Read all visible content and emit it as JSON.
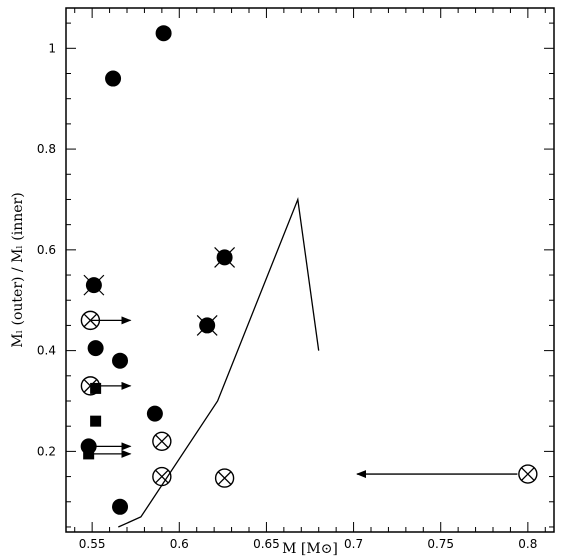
{
  "chart_data": {
    "type": "scatter",
    "xlabel": "M [M⊙]",
    "ylabel": "Mₗ (outer) / Mₗ (inner)",
    "xlim": [
      0.535,
      0.815
    ],
    "ylim": [
      0.04,
      1.08
    ],
    "x_ticks": [
      0.55,
      0.6,
      0.65,
      0.7,
      0.75,
      0.8
    ],
    "x_tick_labels": [
      "0.55",
      "0.6",
      "0.65",
      "0.7",
      "0.75",
      "0.8"
    ],
    "y_ticks": [
      0.2,
      0.4,
      0.6,
      0.8,
      1.0
    ],
    "y_tick_labels": [
      "0.2",
      "0.4",
      "0.6",
      "0.8",
      "1"
    ],
    "grid": false,
    "series": [
      {
        "marker": "filled-circle",
        "points": [
          {
            "x": 0.562,
            "y": 0.94
          },
          {
            "x": 0.591,
            "y": 1.03
          },
          {
            "x": 0.552,
            "y": 0.405
          },
          {
            "x": 0.566,
            "y": 0.38
          },
          {
            "x": 0.586,
            "y": 0.275
          },
          {
            "x": 0.548,
            "y": 0.21
          },
          {
            "x": 0.566,
            "y": 0.09
          }
        ]
      },
      {
        "marker": "filled-circle-crossed",
        "points": [
          {
            "x": 0.551,
            "y": 0.53
          },
          {
            "x": 0.626,
            "y": 0.585
          },
          {
            "x": 0.616,
            "y": 0.45
          }
        ]
      },
      {
        "marker": "open-circle-crossed",
        "points": [
          {
            "x": 0.549,
            "y": 0.46
          },
          {
            "x": 0.549,
            "y": 0.33
          },
          {
            "x": 0.59,
            "y": 0.22
          },
          {
            "x": 0.59,
            "y": 0.15
          },
          {
            "x": 0.626,
            "y": 0.147
          },
          {
            "x": 0.8,
            "y": 0.155
          }
        ]
      },
      {
        "marker": "filled-square",
        "points": [
          {
            "x": 0.552,
            "y": 0.325
          },
          {
            "x": 0.552,
            "y": 0.26
          },
          {
            "x": 0.548,
            "y": 0.195
          }
        ]
      },
      {
        "marker": "line",
        "points": [
          {
            "x": 0.565,
            "y": 0.05
          },
          {
            "x": 0.578,
            "y": 0.07
          },
          {
            "x": 0.622,
            "y": 0.3
          },
          {
            "x": 0.668,
            "y": 0.7
          },
          {
            "x": 0.68,
            "y": 0.4
          }
        ]
      }
    ],
    "arrows": [
      {
        "from": [
          0.549,
          0.46
        ],
        "to": [
          0.572,
          0.46
        ]
      },
      {
        "from": [
          0.549,
          0.33
        ],
        "to": [
          0.572,
          0.33
        ]
      },
      {
        "from": [
          0.548,
          0.21
        ],
        "to": [
          0.572,
          0.21
        ]
      },
      {
        "from": [
          0.548,
          0.195
        ],
        "to": [
          0.572,
          0.195
        ]
      },
      {
        "from": [
          0.794,
          0.155
        ],
        "to": [
          0.702,
          0.155
        ]
      }
    ]
  }
}
